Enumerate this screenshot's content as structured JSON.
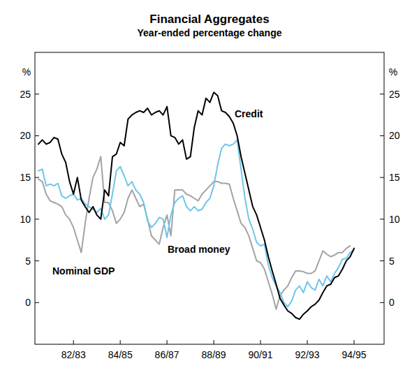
{
  "chart_data": {
    "type": "line",
    "title": "Financial Aggregates",
    "subtitle": "Year-ended percentage change",
    "y_label": "%",
    "grid": false,
    "ylim": [
      -5,
      30
    ],
    "yticks": [
      0,
      5,
      10,
      15,
      20,
      25
    ],
    "categories": [
      null,
      null,
      null,
      null,
      null,
      null,
      null,
      null,
      null,
      "82/83",
      null,
      null,
      null,
      null,
      null,
      null,
      null,
      null,
      null,
      null,
      null,
      "84/85",
      null,
      null,
      null,
      null,
      null,
      null,
      null,
      null,
      null,
      null,
      null,
      "86/87",
      null,
      null,
      null,
      null,
      null,
      null,
      null,
      null,
      null,
      null,
      null,
      "88/89",
      null,
      null,
      null,
      null,
      null,
      null,
      null,
      null,
      null,
      null,
      null,
      "90/91",
      null,
      null,
      null,
      null,
      null,
      null,
      null,
      null,
      null,
      null,
      null,
      "92/93",
      null,
      null,
      null,
      null,
      null,
      null,
      null,
      null,
      null,
      null,
      null,
      "94/95"
    ],
    "series": [
      {
        "name": "Credit",
        "color": "#000000",
        "values": [
          19.0,
          19.5,
          19.0,
          19.2,
          19.8,
          19.6,
          17.8,
          16.8,
          14.5,
          13.0,
          15.0,
          12.3,
          11.5,
          10.8,
          11.5,
          10.5,
          10.0,
          13.5,
          12.8,
          17.5,
          17.8,
          19.2,
          18.8,
          22.0,
          22.5,
          22.8,
          23.0,
          22.8,
          23.3,
          22.5,
          22.8,
          23.0,
          22.5,
          23.5,
          20.0,
          19.8,
          19.0,
          19.5,
          17.2,
          17.5,
          21.0,
          23.0,
          22.5,
          24.5,
          24.0,
          25.2,
          24.8,
          23.0,
          22.8,
          22.3,
          21.5,
          20.0,
          17.5,
          15.5,
          13.5,
          11.5,
          10.5,
          9.0,
          7.5,
          5.5,
          3.8,
          2.2,
          0.5,
          -0.3,
          -1.0,
          -1.3,
          -1.8,
          -2.0,
          -1.4,
          -1.0,
          -0.5,
          -0.2,
          0.3,
          1.2,
          2.0,
          2.2,
          3.0,
          3.2,
          4.0,
          5.0,
          5.5,
          6.5
        ]
      },
      {
        "name": "Broad money",
        "color": "#6ec6ea",
        "values": [
          15.8,
          16.0,
          14.0,
          14.2,
          14.0,
          14.3,
          12.8,
          12.5,
          12.8,
          13.0,
          12.3,
          12.5,
          11.8,
          11.5,
          11.2,
          10.8,
          11.3,
          10.0,
          10.5,
          13.0,
          15.8,
          16.3,
          15.2,
          14.0,
          14.5,
          13.5,
          13.0,
          12.0,
          9.8,
          9.0,
          9.5,
          10.2,
          10.0,
          7.8,
          10.5,
          12.0,
          12.5,
          12.8,
          11.5,
          11.0,
          11.5,
          11.0,
          11.2,
          12.0,
          12.5,
          14.0,
          16.5,
          18.5,
          19.0,
          18.8,
          19.0,
          19.5,
          16.0,
          12.5,
          10.0,
          8.8,
          7.2,
          6.8,
          7.0,
          4.5,
          3.0,
          2.0,
          1.2,
          0.0,
          -0.5,
          0.2,
          1.5,
          2.0,
          1.2,
          2.5,
          1.8,
          1.5,
          2.8,
          2.0,
          3.2,
          2.5,
          3.5,
          4.2,
          5.2,
          5.3,
          6.0,
          6.3
        ]
      },
      {
        "name": "Nominal GDP",
        "color": "#a3a3a3",
        "values": [
          14.8,
          14.5,
          13.0,
          12.2,
          12.0,
          11.8,
          11.5,
          10.5,
          10.0,
          9.0,
          7.5,
          6.0,
          9.5,
          12.5,
          15.0,
          16.0,
          17.5,
          12.0,
          12.0,
          11.0,
          9.5,
          10.0,
          10.8,
          12.5,
          13.5,
          12.5,
          11.5,
          11.8,
          10.0,
          8.0,
          7.5,
          7.0,
          9.0,
          10.5,
          8.0,
          13.5,
          13.5,
          13.5,
          13.0,
          12.8,
          12.5,
          12.2,
          13.0,
          13.5,
          14.0,
          14.5,
          14.5,
          14.3,
          14.3,
          14.2,
          12.5,
          11.0,
          9.5,
          9.0,
          8.0,
          6.5,
          5.0,
          4.8,
          4.0,
          2.5,
          1.0,
          -0.8,
          0.8,
          1.5,
          2.0,
          3.0,
          3.8,
          3.8,
          3.7,
          3.5,
          3.5,
          3.8,
          5.0,
          6.2,
          5.8,
          5.5,
          5.7,
          6.0,
          6.0,
          6.5,
          6.8,
          null
        ]
      }
    ]
  }
}
